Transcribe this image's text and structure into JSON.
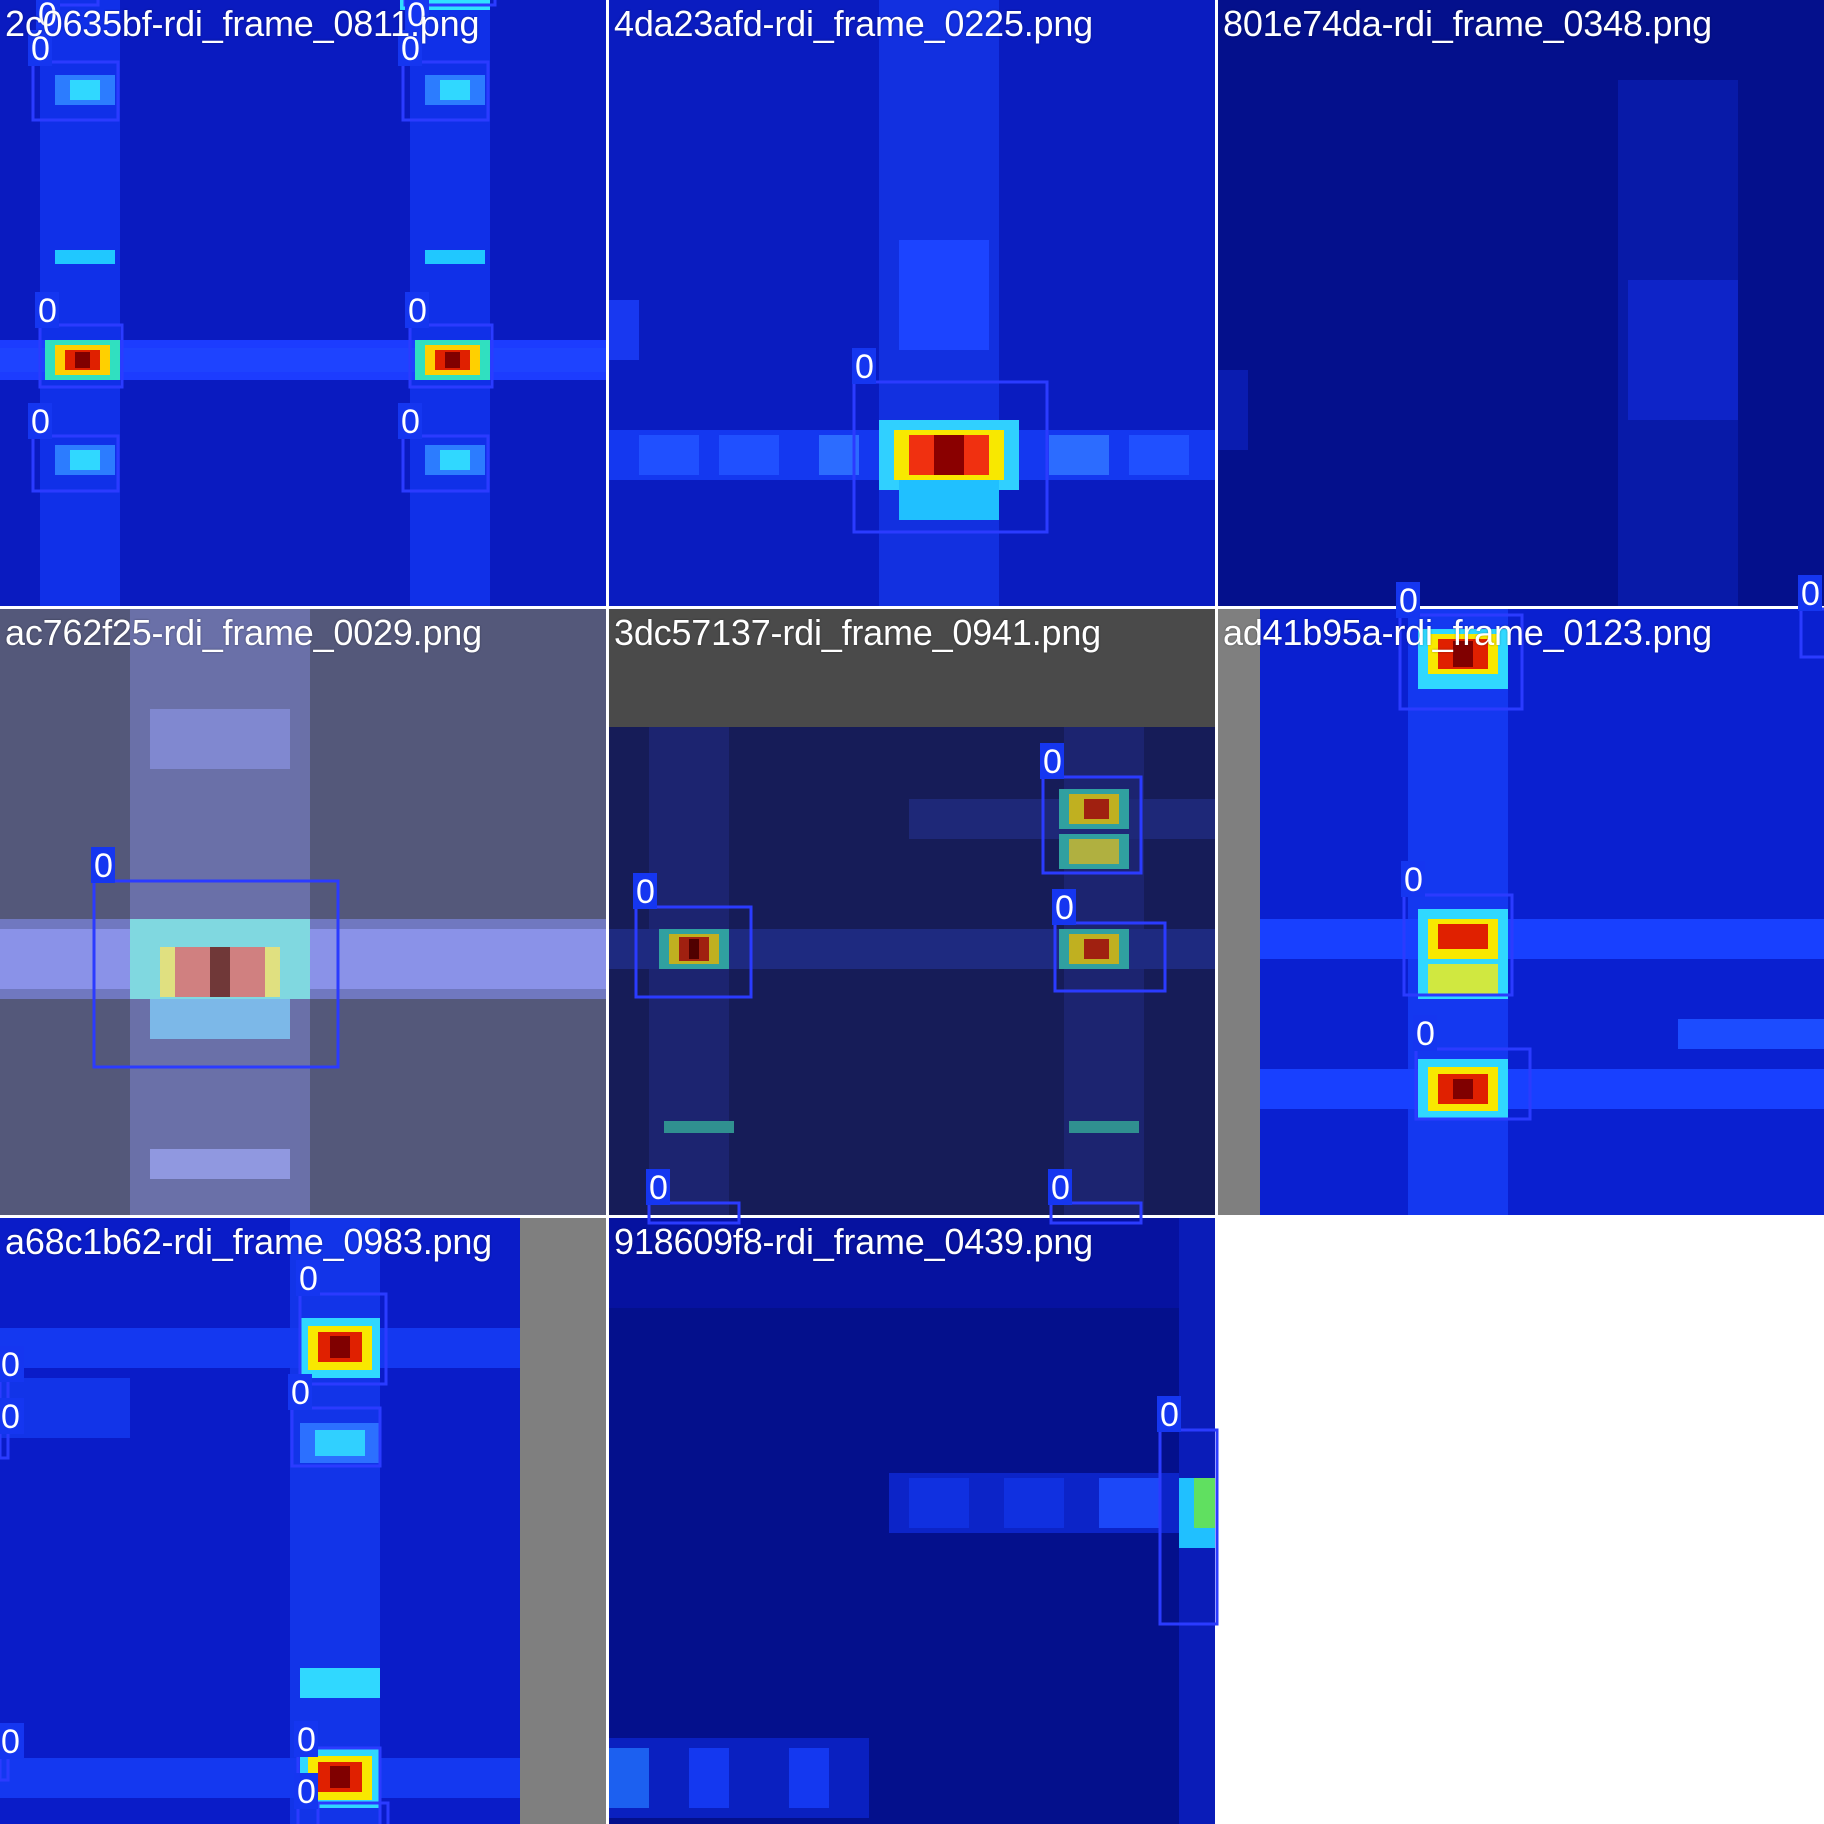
{
  "mosaic": {
    "tiles": [
      {
        "filename": "2c0635bf-rdi_frame_0811.png",
        "colormap": "jet",
        "detections": [
          {
            "class_label": "0"
          },
          {
            "class_label": "0"
          },
          {
            "class_label": "0"
          },
          {
            "class_label": "0"
          },
          {
            "class_label": "0"
          },
          {
            "class_label": "0"
          },
          {
            "class_label": "0"
          },
          {
            "class_label": "0"
          }
        ]
      },
      {
        "filename": "4da23afd-rdi_frame_0225.png",
        "colormap": "jet",
        "detections": [
          {
            "class_label": "0"
          }
        ]
      },
      {
        "filename": "801e74da-rdi_frame_0348.png",
        "colormap": "jet",
        "detections": []
      },
      {
        "filename": "ac762f25-rdi_frame_0029.png",
        "colormap": "jet (faded)",
        "detections": [
          {
            "class_label": "0"
          }
        ]
      },
      {
        "filename": "3dc57137-rdi_frame_0941.png",
        "colormap": "jet (dimmed)",
        "detections": [
          {
            "class_label": "0"
          },
          {
            "class_label": "0"
          },
          {
            "class_label": "0"
          },
          {
            "class_label": "0"
          },
          {
            "class_label": "0"
          }
        ]
      },
      {
        "filename": "ad41b95a-rdi_frame_0123.png",
        "colormap": "jet",
        "detections": [
          {
            "class_label": "0"
          },
          {
            "class_label": "0"
          },
          {
            "class_label": "0"
          },
          {
            "class_label": "0"
          }
        ]
      },
      {
        "filename": "a68c1b62-rdi_frame_0983.png",
        "colormap": "jet",
        "detections": [
          {
            "class_label": "0"
          },
          {
            "class_label": "0"
          },
          {
            "class_label": "0"
          },
          {
            "class_label": "0"
          },
          {
            "class_label": "0"
          },
          {
            "class_label": "0"
          },
          {
            "class_label": "0"
          }
        ]
      },
      {
        "filename": "918609f8-rdi_frame_0439.png",
        "colormap": "jet",
        "detections": [
          {
            "class_label": "0"
          }
        ]
      }
    ],
    "colors": {
      "box_stroke": "#2b3bff",
      "tag_fill": "#1536f0",
      "letterbox_gray": "#7f7f7f",
      "grid_line": "#ffffff"
    }
  }
}
